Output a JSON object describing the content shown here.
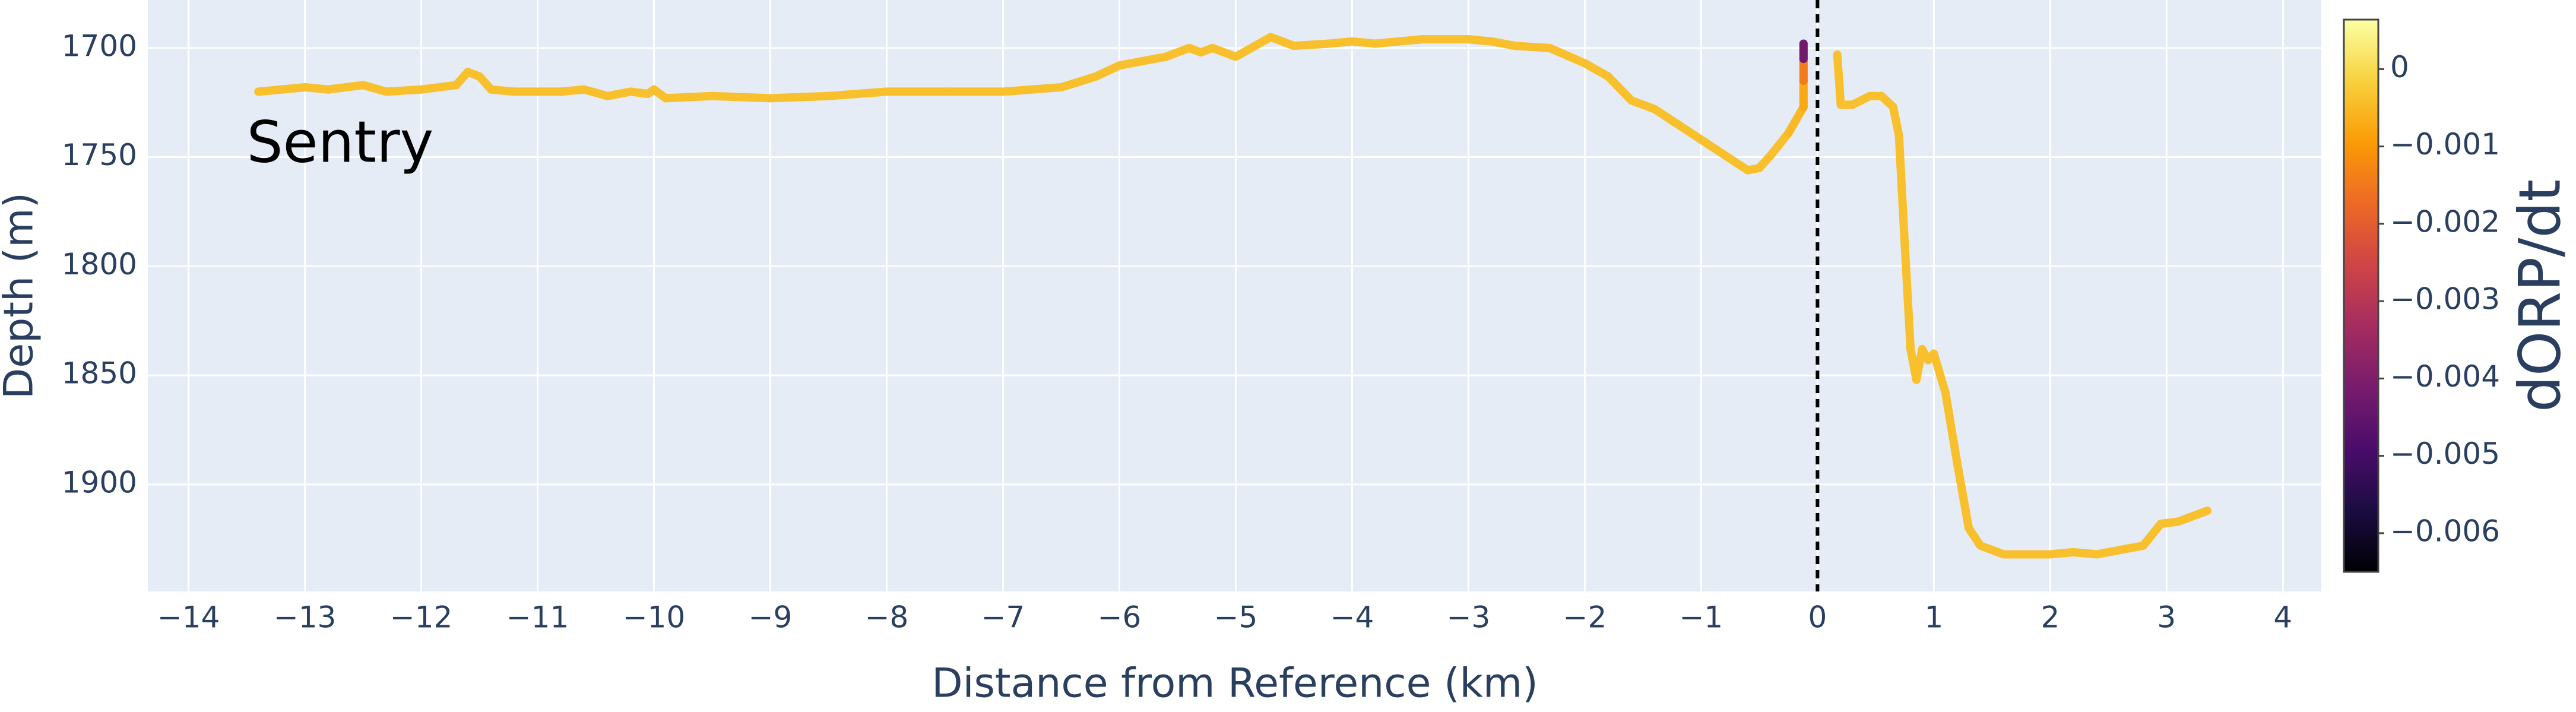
{
  "chart_data": {
    "type": "line",
    "annotation": "Sentry",
    "annotation_pos": [
      -13.5,
      1745
    ],
    "xlabel": "Distance from Reference (km)",
    "ylabel": "Depth (m)",
    "colorbar_title": "dORP/dt",
    "xlim": [
      -14.35,
      4.33
    ],
    "ylim": [
      1949,
      1678
    ],
    "xticks": [
      {
        "value": -14,
        "label": "−14"
      },
      {
        "value": -13,
        "label": "−13"
      },
      {
        "value": -12,
        "label": "−12"
      },
      {
        "value": -11,
        "label": "−11"
      },
      {
        "value": -10,
        "label": "−10"
      },
      {
        "value": -9,
        "label": "−9"
      },
      {
        "value": -8,
        "label": "−8"
      },
      {
        "value": -7,
        "label": "−7"
      },
      {
        "value": -6,
        "label": "−6"
      },
      {
        "value": -5,
        "label": "−5"
      },
      {
        "value": -4,
        "label": "−4"
      },
      {
        "value": -3,
        "label": "−3"
      },
      {
        "value": -2,
        "label": "−2"
      },
      {
        "value": -1,
        "label": "−1"
      },
      0,
      1,
      2,
      3,
      4
    ],
    "yticks": [
      1700,
      1750,
      1800,
      1850,
      1900
    ],
    "grid": true,
    "vlines": [
      0
    ],
    "clim": [
      -0.0065,
      0.00064
    ],
    "cticks": [
      0,
      {
        "value": -0.001,
        "label": "−0.001"
      },
      {
        "value": -0.002,
        "label": "−0.002"
      },
      {
        "value": -0.003,
        "label": "−0.003"
      },
      {
        "value": -0.004,
        "label": "−0.004"
      },
      {
        "value": -0.005,
        "label": "−0.005"
      },
      {
        "value": -0.006,
        "label": "−0.006"
      }
    ],
    "colorscale": [
      "#000004",
      "#1b0c41",
      "#4a0c6b",
      "#781c6d",
      "#a52c60",
      "#cf4446",
      "#ed6925",
      "#fb9b06",
      "#f7d13d",
      "#fcffa4"
    ],
    "series": [
      {
        "x": [
          -13.4,
          -13,
          -12.8,
          -12.5,
          -12.3,
          -12,
          -11.7,
          -11.6,
          -11.5,
          -11.4,
          -11.2,
          -10.8,
          -10.6,
          -10.4,
          -10.2,
          -10.05,
          -10,
          -9.9,
          -9.5,
          -9,
          -8.5,
          -8,
          -7.5,
          -7,
          -6.5,
          -6.2,
          -6,
          -5.8,
          -5.6,
          -5.4,
          -5.3,
          -5.2,
          -5,
          -4.8,
          -4.7,
          -4.5,
          -4.2,
          -4,
          -3.8,
          -3.6,
          -3.4,
          -3,
          -2.8,
          -2.6,
          -2.3,
          -2,
          -1.8,
          -1.6,
          -1.4,
          -1.2,
          -1,
          -0.8,
          -0.6,
          -0.5,
          -0.4,
          -0.25,
          -0.12,
          -0.12,
          -0.12,
          -0.12,
          null,
          0.17,
          0.2,
          0.3,
          0.45,
          0.55,
          0.65,
          0.7,
          0.75,
          0.8,
          0.85,
          0.9,
          0.95,
          1,
          1.1,
          1.2,
          1.3,
          1.4,
          1.6,
          2,
          2.2,
          2.4,
          2.6,
          2.8,
          2.95,
          3.1,
          3.35
        ],
        "y": [
          1720,
          1718,
          1719,
          1717,
          1720,
          1719,
          1717,
          1711,
          1713,
          1719,
          1720,
          1720,
          1719,
          1722,
          1720,
          1721,
          1719,
          1723,
          1722,
          1723,
          1722,
          1720,
          1720,
          1720,
          1718,
          1713,
          1708,
          1706,
          1704,
          1700,
          1702,
          1700,
          1704,
          1698,
          1695,
          1699,
          1698,
          1697,
          1698,
          1697,
          1696,
          1696,
          1697,
          1699,
          1700,
          1707,
          1713,
          1724,
          1728,
          1735,
          1742,
          1749,
          1756,
          1755,
          1749,
          1739,
          1727,
          1715,
          1705,
          1698,
          null,
          1703,
          1726,
          1726,
          1722,
          1722,
          1727,
          1740,
          1790,
          1838,
          1852,
          1838,
          1843,
          1840,
          1858,
          1890,
          1920,
          1928,
          1932,
          1932,
          1931,
          1932,
          1930,
          1928,
          1918,
          1917,
          1912
        ],
        "color_values": [
          -0.0004,
          -0.0004,
          -0.0004,
          -0.0004,
          -0.0004,
          -0.0004,
          -0.0004,
          -0.0004,
          -0.0004,
          -0.0004,
          -0.0004,
          -0.0004,
          -0.0004,
          -0.0004,
          -0.0004,
          -0.0004,
          -0.0004,
          -0.0004,
          -0.0004,
          -0.0004,
          -0.0004,
          -0.0004,
          -0.0004,
          -0.0004,
          -0.0004,
          -0.0004,
          -0.0004,
          -0.0004,
          -0.0004,
          -0.0004,
          -0.0004,
          -0.0004,
          -0.0004,
          -0.0004,
          -0.0004,
          -0.0004,
          -0.0004,
          -0.0004,
          -0.0004,
          -0.0004,
          -0.0004,
          -0.0004,
          -0.0004,
          -0.0004,
          -0.0004,
          -0.0004,
          -0.0004,
          -0.0004,
          -0.0004,
          -0.0004,
          -0.0004,
          -0.0004,
          -0.0004,
          -0.0004,
          -0.0004,
          -0.0004,
          -0.0006,
          -0.0009,
          -0.002,
          -0.0065,
          null,
          -0.0004,
          -0.0004,
          -0.0004,
          -0.0004,
          -0.0004,
          -0.0004,
          -0.0004,
          -0.0004,
          -0.0004,
          -0.0004,
          -0.0004,
          -0.0004,
          -0.0004,
          -0.0004,
          -0.0004,
          -0.0004,
          -0.0004,
          -0.0004,
          -0.0004,
          -0.0004,
          -0.0004,
          -0.0004,
          -0.0004,
          -0.0004,
          -0.0004,
          -0.0004
        ]
      }
    ]
  }
}
